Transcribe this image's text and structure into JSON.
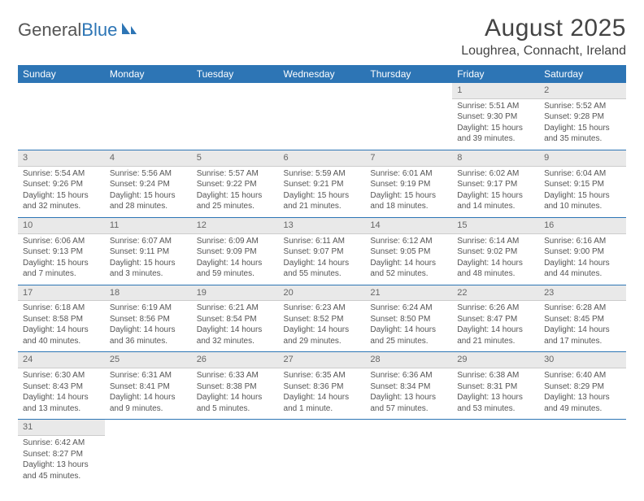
{
  "logo": {
    "word1": "General",
    "word2": "Blue"
  },
  "title": "August 2025",
  "location": "Loughrea, Connacht, Ireland",
  "colors": {
    "header_bg": "#2d75b5",
    "header_text": "#ffffff",
    "daynum_bg": "#e9e9e9",
    "row_border": "#2d75b5",
    "body_text": "#555555",
    "page_bg": "#ffffff"
  },
  "typography": {
    "title_fontsize": 30,
    "location_fontsize": 16,
    "dayheader_fontsize": 12,
    "cell_fontsize": 10
  },
  "dayHeaders": [
    "Sunday",
    "Monday",
    "Tuesday",
    "Wednesday",
    "Thursday",
    "Friday",
    "Saturday"
  ],
  "weeks": [
    [
      {
        "n": "",
        "sr": "",
        "ss": "",
        "dl": ""
      },
      {
        "n": "",
        "sr": "",
        "ss": "",
        "dl": ""
      },
      {
        "n": "",
        "sr": "",
        "ss": "",
        "dl": ""
      },
      {
        "n": "",
        "sr": "",
        "ss": "",
        "dl": ""
      },
      {
        "n": "",
        "sr": "",
        "ss": "",
        "dl": ""
      },
      {
        "n": "1",
        "sr": "Sunrise: 5:51 AM",
        "ss": "Sunset: 9:30 PM",
        "dl": "Daylight: 15 hours and 39 minutes."
      },
      {
        "n": "2",
        "sr": "Sunrise: 5:52 AM",
        "ss": "Sunset: 9:28 PM",
        "dl": "Daylight: 15 hours and 35 minutes."
      }
    ],
    [
      {
        "n": "3",
        "sr": "Sunrise: 5:54 AM",
        "ss": "Sunset: 9:26 PM",
        "dl": "Daylight: 15 hours and 32 minutes."
      },
      {
        "n": "4",
        "sr": "Sunrise: 5:56 AM",
        "ss": "Sunset: 9:24 PM",
        "dl": "Daylight: 15 hours and 28 minutes."
      },
      {
        "n": "5",
        "sr": "Sunrise: 5:57 AM",
        "ss": "Sunset: 9:22 PM",
        "dl": "Daylight: 15 hours and 25 minutes."
      },
      {
        "n": "6",
        "sr": "Sunrise: 5:59 AM",
        "ss": "Sunset: 9:21 PM",
        "dl": "Daylight: 15 hours and 21 minutes."
      },
      {
        "n": "7",
        "sr": "Sunrise: 6:01 AM",
        "ss": "Sunset: 9:19 PM",
        "dl": "Daylight: 15 hours and 18 minutes."
      },
      {
        "n": "8",
        "sr": "Sunrise: 6:02 AM",
        "ss": "Sunset: 9:17 PM",
        "dl": "Daylight: 15 hours and 14 minutes."
      },
      {
        "n": "9",
        "sr": "Sunrise: 6:04 AM",
        "ss": "Sunset: 9:15 PM",
        "dl": "Daylight: 15 hours and 10 minutes."
      }
    ],
    [
      {
        "n": "10",
        "sr": "Sunrise: 6:06 AM",
        "ss": "Sunset: 9:13 PM",
        "dl": "Daylight: 15 hours and 7 minutes."
      },
      {
        "n": "11",
        "sr": "Sunrise: 6:07 AM",
        "ss": "Sunset: 9:11 PM",
        "dl": "Daylight: 15 hours and 3 minutes."
      },
      {
        "n": "12",
        "sr": "Sunrise: 6:09 AM",
        "ss": "Sunset: 9:09 PM",
        "dl": "Daylight: 14 hours and 59 minutes."
      },
      {
        "n": "13",
        "sr": "Sunrise: 6:11 AM",
        "ss": "Sunset: 9:07 PM",
        "dl": "Daylight: 14 hours and 55 minutes."
      },
      {
        "n": "14",
        "sr": "Sunrise: 6:12 AM",
        "ss": "Sunset: 9:05 PM",
        "dl": "Daylight: 14 hours and 52 minutes."
      },
      {
        "n": "15",
        "sr": "Sunrise: 6:14 AM",
        "ss": "Sunset: 9:02 PM",
        "dl": "Daylight: 14 hours and 48 minutes."
      },
      {
        "n": "16",
        "sr": "Sunrise: 6:16 AM",
        "ss": "Sunset: 9:00 PM",
        "dl": "Daylight: 14 hours and 44 minutes."
      }
    ],
    [
      {
        "n": "17",
        "sr": "Sunrise: 6:18 AM",
        "ss": "Sunset: 8:58 PM",
        "dl": "Daylight: 14 hours and 40 minutes."
      },
      {
        "n": "18",
        "sr": "Sunrise: 6:19 AM",
        "ss": "Sunset: 8:56 PM",
        "dl": "Daylight: 14 hours and 36 minutes."
      },
      {
        "n": "19",
        "sr": "Sunrise: 6:21 AM",
        "ss": "Sunset: 8:54 PM",
        "dl": "Daylight: 14 hours and 32 minutes."
      },
      {
        "n": "20",
        "sr": "Sunrise: 6:23 AM",
        "ss": "Sunset: 8:52 PM",
        "dl": "Daylight: 14 hours and 29 minutes."
      },
      {
        "n": "21",
        "sr": "Sunrise: 6:24 AM",
        "ss": "Sunset: 8:50 PM",
        "dl": "Daylight: 14 hours and 25 minutes."
      },
      {
        "n": "22",
        "sr": "Sunrise: 6:26 AM",
        "ss": "Sunset: 8:47 PM",
        "dl": "Daylight: 14 hours and 21 minutes."
      },
      {
        "n": "23",
        "sr": "Sunrise: 6:28 AM",
        "ss": "Sunset: 8:45 PM",
        "dl": "Daylight: 14 hours and 17 minutes."
      }
    ],
    [
      {
        "n": "24",
        "sr": "Sunrise: 6:30 AM",
        "ss": "Sunset: 8:43 PM",
        "dl": "Daylight: 14 hours and 13 minutes."
      },
      {
        "n": "25",
        "sr": "Sunrise: 6:31 AM",
        "ss": "Sunset: 8:41 PM",
        "dl": "Daylight: 14 hours and 9 minutes."
      },
      {
        "n": "26",
        "sr": "Sunrise: 6:33 AM",
        "ss": "Sunset: 8:38 PM",
        "dl": "Daylight: 14 hours and 5 minutes."
      },
      {
        "n": "27",
        "sr": "Sunrise: 6:35 AM",
        "ss": "Sunset: 8:36 PM",
        "dl": "Daylight: 14 hours and 1 minute."
      },
      {
        "n": "28",
        "sr": "Sunrise: 6:36 AM",
        "ss": "Sunset: 8:34 PM",
        "dl": "Daylight: 13 hours and 57 minutes."
      },
      {
        "n": "29",
        "sr": "Sunrise: 6:38 AM",
        "ss": "Sunset: 8:31 PM",
        "dl": "Daylight: 13 hours and 53 minutes."
      },
      {
        "n": "30",
        "sr": "Sunrise: 6:40 AM",
        "ss": "Sunset: 8:29 PM",
        "dl": "Daylight: 13 hours and 49 minutes."
      }
    ],
    [
      {
        "n": "31",
        "sr": "Sunrise: 6:42 AM",
        "ss": "Sunset: 8:27 PM",
        "dl": "Daylight: 13 hours and 45 minutes."
      },
      {
        "n": "",
        "sr": "",
        "ss": "",
        "dl": ""
      },
      {
        "n": "",
        "sr": "",
        "ss": "",
        "dl": ""
      },
      {
        "n": "",
        "sr": "",
        "ss": "",
        "dl": ""
      },
      {
        "n": "",
        "sr": "",
        "ss": "",
        "dl": ""
      },
      {
        "n": "",
        "sr": "",
        "ss": "",
        "dl": ""
      },
      {
        "n": "",
        "sr": "",
        "ss": "",
        "dl": ""
      }
    ]
  ]
}
